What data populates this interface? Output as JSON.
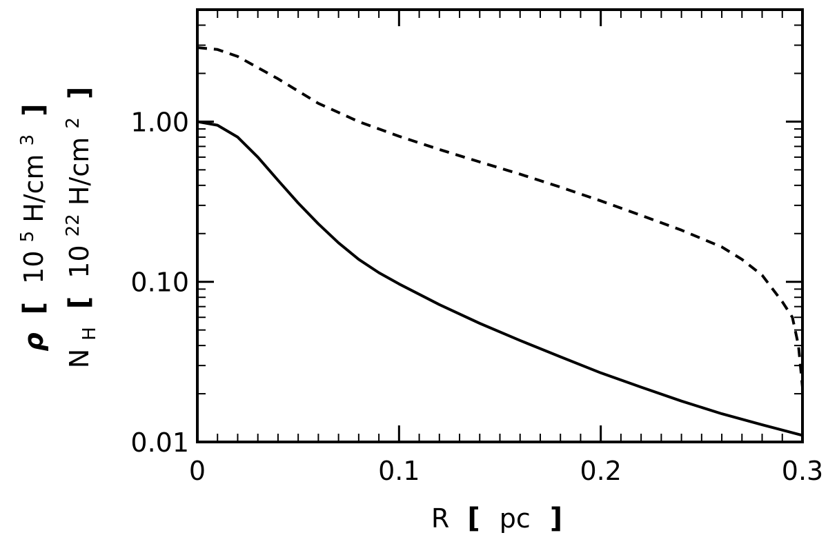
{
  "chart_data": {
    "type": "line",
    "title": "",
    "xlabel": {
      "symbol": "R",
      "unit": "pc"
    },
    "ylabel": {
      "line1": {
        "symbol": "ρ",
        "unit_base": "10",
        "unit_exp": "5",
        "unit_rest": " H/cm",
        "unit_rest_exp": "3"
      },
      "line2": {
        "symbol": "N",
        "symbol_sub": "H",
        "unit_base": "10",
        "unit_exp": "22",
        "unit_rest": " H/cm",
        "unit_rest_exp": "2"
      }
    },
    "xlim": [
      0,
      0.3
    ],
    "ylim": [
      0.01,
      5.0
    ],
    "yscale": "log",
    "x_ticks": [
      {
        "value": 0,
        "label": "0"
      },
      {
        "value": 0.1,
        "label": "0.1"
      },
      {
        "value": 0.2,
        "label": "0.2"
      },
      {
        "value": 0.3,
        "label": "0.3"
      }
    ],
    "y_ticks": [
      {
        "value": 0.01,
        "label": "0.01"
      },
      {
        "value": 0.1,
        "label": "0.10"
      },
      {
        "value": 1.0,
        "label": "1.00"
      }
    ],
    "series": [
      {
        "style": "solid",
        "x": [
          0,
          0.01,
          0.02,
          0.03,
          0.04,
          0.05,
          0.06,
          0.07,
          0.08,
          0.09,
          0.1,
          0.12,
          0.14,
          0.16,
          0.18,
          0.2,
          0.22,
          0.24,
          0.26,
          0.28,
          0.3
        ],
        "y": [
          1.0,
          0.95,
          0.8,
          0.6,
          0.43,
          0.31,
          0.23,
          0.175,
          0.138,
          0.114,
          0.097,
          0.072,
          0.055,
          0.043,
          0.034,
          0.027,
          0.022,
          0.018,
          0.015,
          0.0128,
          0.011
        ]
      },
      {
        "style": "dashed",
        "x": [
          0,
          0.01,
          0.02,
          0.04,
          0.06,
          0.08,
          0.1,
          0.12,
          0.14,
          0.16,
          0.18,
          0.2,
          0.22,
          0.24,
          0.26,
          0.27,
          0.28,
          0.29,
          0.295,
          0.298,
          0.3
        ],
        "y": [
          2.9,
          2.82,
          2.55,
          1.85,
          1.3,
          1.0,
          0.81,
          0.67,
          0.56,
          0.47,
          0.39,
          0.32,
          0.26,
          0.21,
          0.165,
          0.138,
          0.11,
          0.075,
          0.06,
          0.04,
          0.022
        ]
      }
    ]
  }
}
